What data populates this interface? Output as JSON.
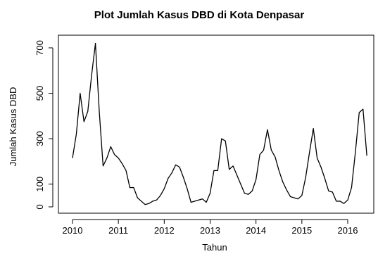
{
  "chart_data": {
    "type": "line",
    "title": "Plot Jumlah Kasus DBD di Kota Denpasar",
    "xlabel": "Tahun",
    "ylabel": "Jumlah Kasus DBD",
    "xlim": [
      2010,
      2016.5
    ],
    "ylim": [
      0,
      720
    ],
    "x_ticks": [
      2010,
      2011,
      2012,
      2013,
      2014,
      2015,
      2016
    ],
    "y_ticks": [
      0,
      100,
      300,
      500,
      700
    ],
    "x_tick_labels": [
      "2010",
      "2011",
      "2012",
      "2013",
      "2014",
      "2015",
      "2016"
    ],
    "y_tick_labels": [
      "0",
      "100",
      "300",
      "500",
      "700"
    ],
    "grid": false,
    "line_color": "#000000",
    "series": [
      {
        "x": [
          2010.0,
          2010.0833,
          2010.1667,
          2010.25,
          2010.3333,
          2010.4167,
          2010.5,
          2010.5833,
          2010.6667,
          2010.75,
          2010.8333,
          2010.9167,
          2011.0,
          2011.0833,
          2011.1667,
          2011.25,
          2011.3333,
          2011.4167,
          2011.5,
          2011.5833,
          2011.6667,
          2011.75,
          2011.8333,
          2011.9167,
          2012.0,
          2012.0833,
          2012.1667,
          2012.25,
          2012.3333,
          2012.4167,
          2012.5,
          2012.5833,
          2012.6667,
          2012.75,
          2012.8333,
          2012.9167,
          2013.0,
          2013.0833,
          2013.1667,
          2013.25,
          2013.3333,
          2013.4167,
          2013.5,
          2013.5833,
          2013.6667,
          2013.75,
          2013.8333,
          2013.9167,
          2014.0,
          2014.0833,
          2014.1667,
          2014.25,
          2014.3333,
          2014.4167,
          2014.5,
          2014.5833,
          2014.6667,
          2014.75,
          2014.8333,
          2014.9167,
          2015.0,
          2015.0833,
          2015.1667,
          2015.25,
          2015.3333,
          2015.4167,
          2015.5,
          2015.5833,
          2015.6667,
          2015.75,
          2015.8333,
          2015.9167,
          2016.0,
          2016.0833,
          2016.1667,
          2016.25,
          2016.3333,
          2016.4167
        ],
        "y": [
          215,
          320,
          500,
          375,
          420,
          580,
          720,
          420,
          180,
          215,
          265,
          230,
          215,
          190,
          160,
          85,
          85,
          40,
          25,
          10,
          15,
          25,
          30,
          50,
          80,
          125,
          150,
          185,
          175,
          130,
          80,
          20,
          25,
          30,
          35,
          20,
          60,
          160,
          160,
          300,
          290,
          165,
          180,
          140,
          100,
          60,
          55,
          70,
          120,
          230,
          250,
          340,
          250,
          220,
          160,
          110,
          75,
          45,
          40,
          35,
          50,
          130,
          240,
          345,
          215,
          175,
          125,
          70,
          65,
          25,
          25,
          15,
          30,
          85,
          240,
          415,
          430,
          225
        ]
      }
    ]
  }
}
